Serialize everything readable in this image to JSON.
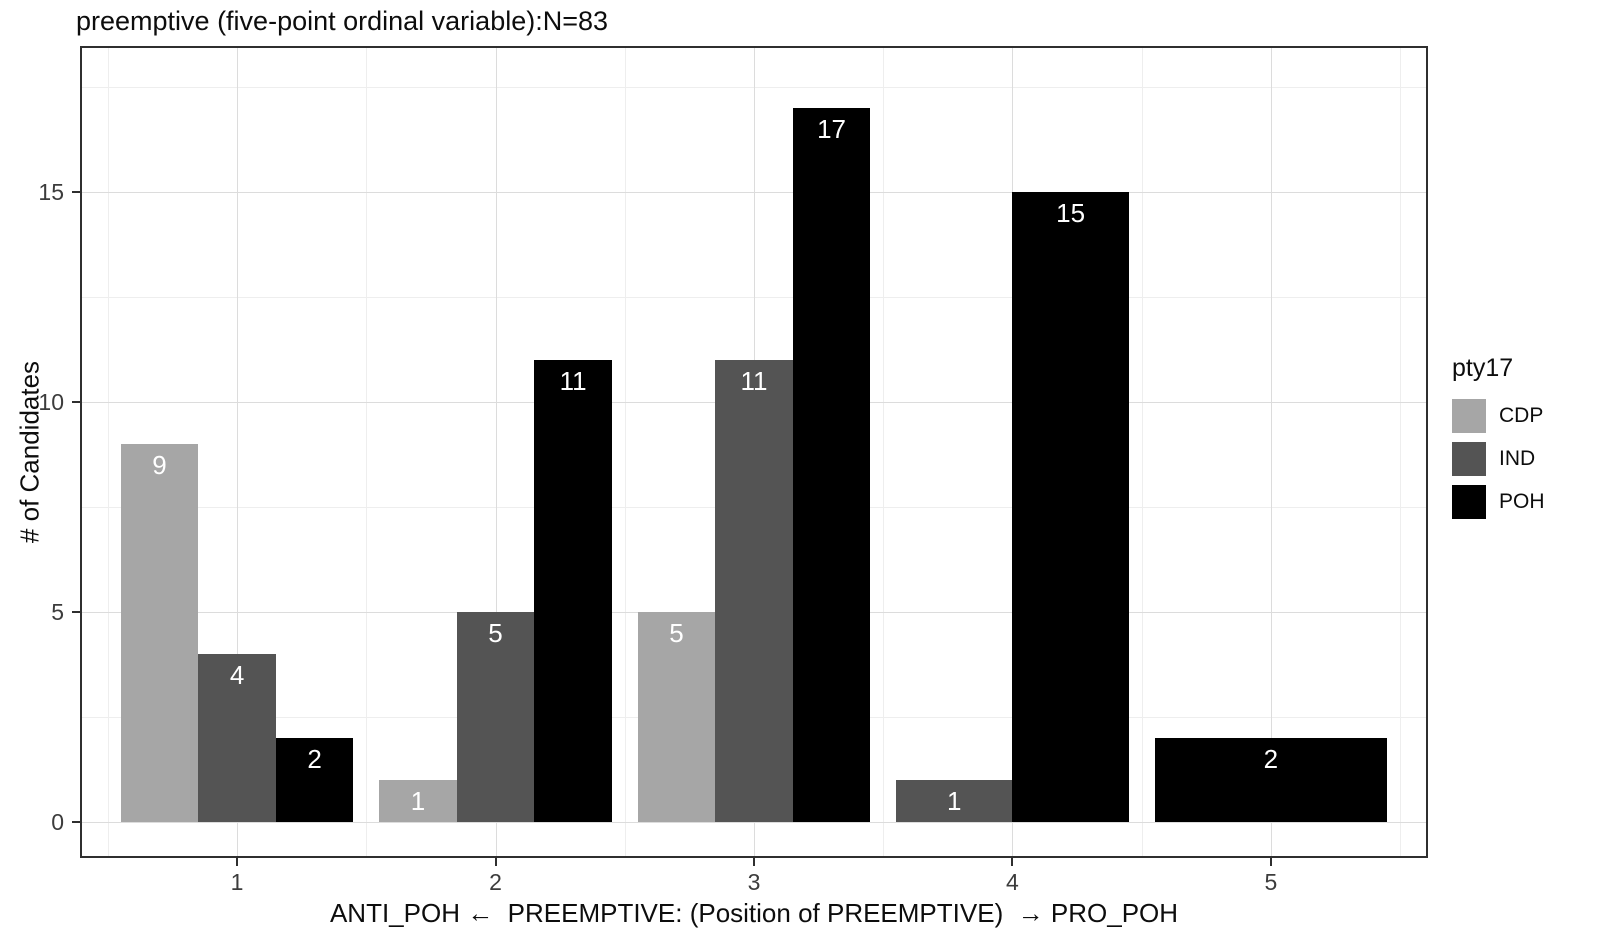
{
  "chart_data": {
    "type": "bar",
    "title": "preemptive (five-point ordinal variable):N=83",
    "xlabel": "ANTI_POH ←  PREEMPTIVE: (Position of PREEMPTIVE)  → PRO_POH",
    "ylabel": "# of Candidates",
    "categories": [
      "1",
      "2",
      "3",
      "4",
      "5"
    ],
    "series": [
      {
        "name": "CDP",
        "color": "#a6a6a6",
        "values": [
          9,
          1,
          5,
          null,
          null
        ]
      },
      {
        "name": "IND",
        "color": "#545454",
        "values": [
          4,
          5,
          11,
          1,
          null
        ]
      },
      {
        "name": "POH",
        "color": "#000000",
        "values": [
          2,
          11,
          17,
          15,
          2
        ]
      }
    ],
    "yticks": [
      0,
      5,
      10,
      15
    ],
    "ylim": [
      0,
      17.8
    ],
    "legend_title": "pty17",
    "legend_position": "right",
    "grid": true,
    "bar_labels": true,
    "bar_label_color": "#ffffff"
  }
}
